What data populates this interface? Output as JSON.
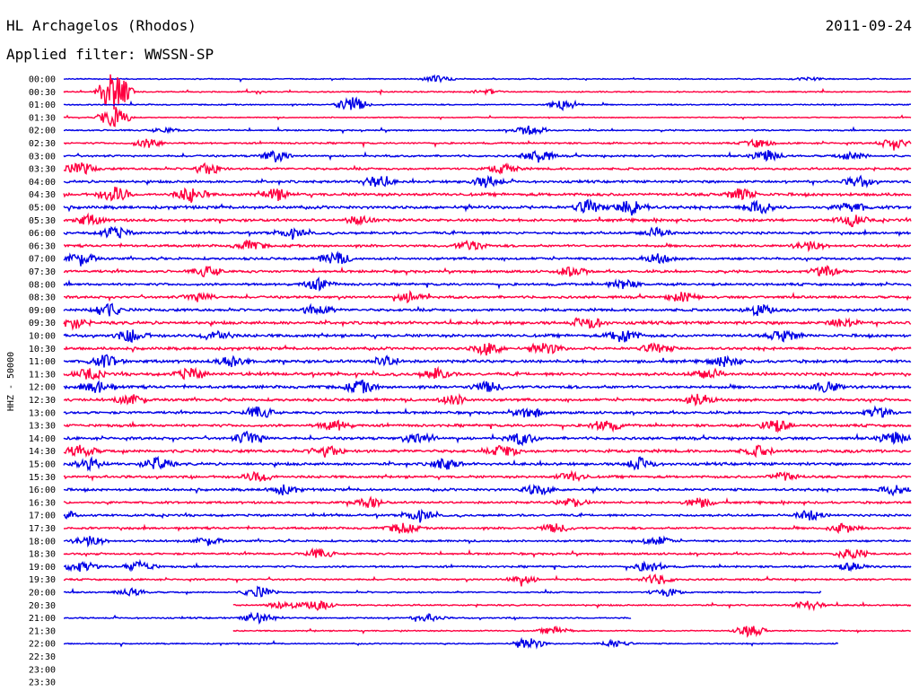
{
  "header": {
    "station": "HL Archagelos (Rhodos)",
    "date": "2011-09-24",
    "filter": "Applied filter: WWSSN-SP"
  },
  "chart_data": {
    "type": "line",
    "ylabel": "HHZ - 50000",
    "colors": {
      "even": "#0000e6",
      "odd": "#ff0040"
    },
    "rows": [
      {
        "label": "00:00",
        "end": 1.0,
        "amp": 0.45,
        "events": [
          [
            0.44,
            0.9
          ],
          [
            0.88,
            0.4
          ]
        ]
      },
      {
        "label": "00:30",
        "end": 1.0,
        "amp": 0.5,
        "events": [
          [
            0.06,
            6.0
          ],
          [
            0.5,
            0.6
          ]
        ]
      },
      {
        "label": "01:00",
        "end": 1.0,
        "amp": 0.5,
        "events": [
          [
            0.34,
            2.2
          ],
          [
            0.59,
            1.6
          ]
        ]
      },
      {
        "label": "01:30",
        "end": 1.0,
        "amp": 0.4,
        "events": [
          [
            0.06,
            3.0
          ]
        ]
      },
      {
        "label": "02:00",
        "end": 1.0,
        "amp": 0.55,
        "events": [
          [
            0.55,
            1.3
          ],
          [
            0.12,
            0.6
          ]
        ]
      },
      {
        "label": "02:30",
        "end": 1.0,
        "amp": 0.7,
        "events": [
          [
            0.1,
            1.2
          ],
          [
            0.82,
            1.1
          ],
          [
            0.98,
            1.4
          ]
        ]
      },
      {
        "label": "03:00",
        "end": 1.0,
        "amp": 0.8,
        "events": [
          [
            0.25,
            1.5
          ],
          [
            0.56,
            1.8
          ],
          [
            0.83,
            1.6
          ],
          [
            0.93,
            1.0
          ]
        ]
      },
      {
        "label": "03:30",
        "end": 1.0,
        "amp": 0.9,
        "events": [
          [
            0.02,
            1.6
          ],
          [
            0.17,
            1.5
          ],
          [
            0.52,
            1.3
          ]
        ]
      },
      {
        "label": "04:00",
        "end": 1.0,
        "amp": 1.0,
        "events": [
          [
            0.37,
            1.6
          ],
          [
            0.5,
            1.6
          ],
          [
            0.94,
            1.4
          ]
        ]
      },
      {
        "label": "04:30",
        "end": 1.0,
        "amp": 1.2,
        "events": [
          [
            0.06,
            2.2
          ],
          [
            0.15,
            2.0
          ],
          [
            0.25,
            1.6
          ],
          [
            0.8,
            1.6
          ]
        ]
      },
      {
        "label": "05:00",
        "end": 1.0,
        "amp": 1.2,
        "events": [
          [
            0.62,
            1.8
          ],
          [
            0.67,
            2.2
          ],
          [
            0.82,
            1.8
          ],
          [
            0.93,
            1.4
          ]
        ]
      },
      {
        "label": "05:30",
        "end": 1.0,
        "amp": 1.1,
        "events": [
          [
            0.03,
            1.4
          ],
          [
            0.35,
            1.2
          ],
          [
            0.93,
            1.5
          ]
        ]
      },
      {
        "label": "06:00",
        "end": 1.0,
        "amp": 1.0,
        "events": [
          [
            0.06,
            1.6
          ],
          [
            0.27,
            1.2
          ],
          [
            0.7,
            1.3
          ]
        ]
      },
      {
        "label": "06:30",
        "end": 1.0,
        "amp": 1.0,
        "events": [
          [
            0.22,
            1.3
          ],
          [
            0.48,
            1.4
          ],
          [
            0.88,
            1.2
          ]
        ]
      },
      {
        "label": "07:00",
        "end": 1.0,
        "amp": 1.0,
        "events": [
          [
            0.02,
            1.8
          ],
          [
            0.32,
            1.8
          ],
          [
            0.7,
            1.2
          ]
        ]
      },
      {
        "label": "07:30",
        "end": 1.0,
        "amp": 1.0,
        "events": [
          [
            0.17,
            1.4
          ],
          [
            0.6,
            1.2
          ],
          [
            0.9,
            1.3
          ]
        ]
      },
      {
        "label": "08:00",
        "end": 1.0,
        "amp": 1.0,
        "events": [
          [
            0.3,
            1.5
          ],
          [
            0.66,
            1.3
          ]
        ]
      },
      {
        "label": "08:30",
        "end": 1.0,
        "amp": 1.0,
        "events": [
          [
            0.16,
            1.2
          ],
          [
            0.41,
            1.4
          ],
          [
            0.73,
            1.3
          ]
        ]
      },
      {
        "label": "09:00",
        "end": 1.0,
        "amp": 1.1,
        "events": [
          [
            0.05,
            2.0
          ],
          [
            0.3,
            1.5
          ],
          [
            0.82,
            1.5
          ]
        ]
      },
      {
        "label": "09:30",
        "end": 1.0,
        "amp": 1.2,
        "events": [
          [
            0.01,
            1.6
          ],
          [
            0.62,
            1.6
          ],
          [
            0.92,
            1.3
          ]
        ]
      },
      {
        "label": "10:00",
        "end": 1.0,
        "amp": 1.2,
        "events": [
          [
            0.08,
            1.7
          ],
          [
            0.18,
            1.5
          ],
          [
            0.66,
            2.0
          ],
          [
            0.85,
            1.5
          ]
        ]
      },
      {
        "label": "10:30",
        "end": 1.0,
        "amp": 1.1,
        "events": [
          [
            0.5,
            1.8
          ],
          [
            0.57,
            1.5
          ],
          [
            0.7,
            1.3
          ]
        ]
      },
      {
        "label": "11:00",
        "end": 1.0,
        "amp": 1.2,
        "events": [
          [
            0.05,
            1.6
          ],
          [
            0.2,
            1.6
          ],
          [
            0.38,
            1.3
          ],
          [
            0.78,
            1.3
          ]
        ]
      },
      {
        "label": "11:30",
        "end": 1.0,
        "amp": 1.2,
        "events": [
          [
            0.03,
            1.4
          ],
          [
            0.15,
            1.6
          ],
          [
            0.44,
            1.5
          ],
          [
            0.76,
            1.5
          ]
        ]
      },
      {
        "label": "12:00",
        "end": 1.0,
        "amp": 1.2,
        "events": [
          [
            0.04,
            1.6
          ],
          [
            0.35,
            1.7
          ],
          [
            0.5,
            1.4
          ],
          [
            0.9,
            1.4
          ]
        ]
      },
      {
        "label": "12:30",
        "end": 1.0,
        "amp": 1.1,
        "events": [
          [
            0.08,
            1.5
          ],
          [
            0.46,
            1.3
          ],
          [
            0.75,
            1.6
          ]
        ]
      },
      {
        "label": "13:00",
        "end": 1.0,
        "amp": 1.0,
        "events": [
          [
            0.23,
            1.6
          ],
          [
            0.55,
            1.4
          ],
          [
            0.96,
            1.3
          ]
        ]
      },
      {
        "label": "13:30",
        "end": 1.0,
        "amp": 1.1,
        "events": [
          [
            0.32,
            1.4
          ],
          [
            0.64,
            1.6
          ],
          [
            0.84,
            1.7
          ]
        ]
      },
      {
        "label": "14:00",
        "end": 1.0,
        "amp": 1.1,
        "events": [
          [
            0.22,
            1.8
          ],
          [
            0.42,
            1.5
          ],
          [
            0.54,
            1.6
          ],
          [
            0.98,
            1.7
          ]
        ]
      },
      {
        "label": "14:30",
        "end": 1.0,
        "amp": 1.2,
        "events": [
          [
            0.02,
            1.6
          ],
          [
            0.31,
            1.5
          ],
          [
            0.52,
            1.6
          ],
          [
            0.82,
            1.3
          ]
        ]
      },
      {
        "label": "15:00",
        "end": 1.0,
        "amp": 1.1,
        "events": [
          [
            0.03,
            1.4
          ],
          [
            0.11,
            1.7
          ],
          [
            0.45,
            1.5
          ],
          [
            0.68,
            1.5
          ]
        ]
      },
      {
        "label": "15:30",
        "end": 1.0,
        "amp": 1.0,
        "events": [
          [
            0.23,
            1.4
          ],
          [
            0.6,
            1.3
          ],
          [
            0.85,
            1.2
          ]
        ]
      },
      {
        "label": "16:00",
        "end": 1.0,
        "amp": 1.0,
        "events": [
          [
            0.26,
            1.3
          ],
          [
            0.56,
            1.4
          ],
          [
            0.98,
            1.3
          ]
        ]
      },
      {
        "label": "16:30",
        "end": 1.0,
        "amp": 0.9,
        "events": [
          [
            0.36,
            1.3
          ],
          [
            0.6,
            1.2
          ],
          [
            0.75,
            1.3
          ]
        ]
      },
      {
        "label": "17:00",
        "end": 1.0,
        "amp": 0.9,
        "events": [
          [
            0.0,
            1.4
          ],
          [
            0.42,
            1.5
          ],
          [
            0.88,
            1.4
          ]
        ]
      },
      {
        "label": "17:30",
        "end": 1.0,
        "amp": 0.9,
        "events": [
          [
            0.4,
            1.4
          ],
          [
            0.58,
            1.2
          ],
          [
            0.92,
            1.3
          ]
        ]
      },
      {
        "label": "18:00",
        "end": 1.0,
        "amp": 0.8,
        "events": [
          [
            0.03,
            1.4
          ],
          [
            0.17,
            1.1
          ],
          [
            0.7,
            1.2
          ]
        ]
      },
      {
        "label": "18:30",
        "end": 1.0,
        "amp": 0.8,
        "events": [
          [
            0.3,
            1.3
          ],
          [
            0.93,
            1.5
          ]
        ]
      },
      {
        "label": "19:00",
        "end": 1.0,
        "amp": 0.8,
        "events": [
          [
            0.02,
            1.5
          ],
          [
            0.09,
            1.5
          ],
          [
            0.69,
            1.5
          ],
          [
            0.93,
            1.1
          ]
        ]
      },
      {
        "label": "19:30",
        "end": 1.0,
        "amp": 0.7,
        "events": [
          [
            0.54,
            1.2
          ],
          [
            0.7,
            1.4
          ]
        ]
      },
      {
        "label": "20:00",
        "end": 0.895,
        "amp": 0.6,
        "events": [
          [
            0.08,
            1.0
          ],
          [
            0.23,
            1.4
          ],
          [
            0.71,
            1.1
          ]
        ]
      },
      {
        "label": "20:30",
        "start": 0.2,
        "end": 1.0,
        "amp": 0.6,
        "events": [
          [
            0.26,
            1.2
          ],
          [
            0.3,
            1.3
          ],
          [
            0.88,
            1.2
          ]
        ]
      },
      {
        "label": "21:00",
        "end": 0.67,
        "amp": 0.6,
        "events": [
          [
            0.23,
            1.6
          ],
          [
            0.43,
            1.0
          ]
        ]
      },
      {
        "label": "21:30",
        "start": 0.2,
        "end": 1.0,
        "amp": 0.5,
        "events": [
          [
            0.81,
            1.6
          ],
          [
            0.58,
            1.0
          ]
        ]
      },
      {
        "label": "22:00",
        "end": 0.915,
        "amp": 0.5,
        "events": [
          [
            0.55,
            1.5
          ],
          [
            0.65,
            1.0
          ]
        ]
      },
      {
        "label": "22:30",
        "end": 0.0,
        "amp": 0.0,
        "events": []
      },
      {
        "label": "23:00",
        "end": 0.0,
        "amp": 0.0,
        "events": []
      },
      {
        "label": "23:30",
        "end": 0.0,
        "amp": 0.0,
        "events": []
      }
    ]
  }
}
